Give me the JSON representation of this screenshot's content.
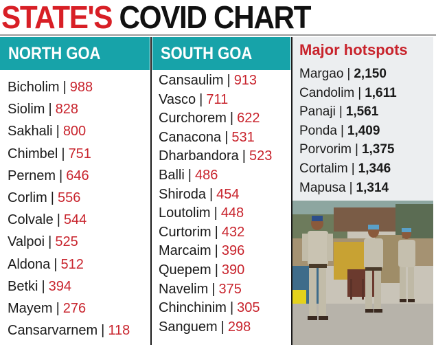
{
  "header": {
    "title_part1": "STATE'S",
    "title_part2": "COVID CHART"
  },
  "north": {
    "heading": "NORTH GOA",
    "items": [
      {
        "name": "Bicholim",
        "value": "988"
      },
      {
        "name": "Siolim",
        "value": "828"
      },
      {
        "name": "Sakhali",
        "value": "800"
      },
      {
        "name": "Chimbel",
        "value": "751"
      },
      {
        "name": "Pernem",
        "value": "646"
      },
      {
        "name": "Corlim",
        "value": "556"
      },
      {
        "name": "Colvale",
        "value": "544"
      },
      {
        "name": "Valpoi",
        "value": "525"
      },
      {
        "name": "Aldona",
        "value": "512"
      },
      {
        "name": "Betki",
        "value": "394"
      },
      {
        "name": "Mayem",
        "value": "276"
      },
      {
        "name": "Cansarvarnem",
        "value": "118"
      }
    ]
  },
  "south": {
    "heading": "SOUTH GOA",
    "items": [
      {
        "name": "Cansaulim",
        "value": "913"
      },
      {
        "name": "Vasco",
        "value": "711"
      },
      {
        "name": "Curchorem",
        "value": "622"
      },
      {
        "name": "Canacona",
        "value": "531"
      },
      {
        "name": "Dharbandora",
        "value": "523"
      },
      {
        "name": "Balli",
        "value": "486"
      },
      {
        "name": "Shiroda",
        "value": "454"
      },
      {
        "name": "Loutolim",
        "value": "448"
      },
      {
        "name": "Curtorim",
        "value": "432"
      },
      {
        "name": "Marcaim",
        "value": "396"
      },
      {
        "name": "Quepem",
        "value": "390"
      },
      {
        "name": "Navelim",
        "value": "375"
      },
      {
        "name": "Chinchinim",
        "value": "305"
      },
      {
        "name": "Sanguem",
        "value": "298"
      }
    ]
  },
  "hotspots": {
    "heading": "Major hotspots",
    "items": [
      {
        "name": "Margao",
        "value": "2,150"
      },
      {
        "name": "Candolim",
        "value": "1,611"
      },
      {
        "name": "Panaji",
        "value": "1,561"
      },
      {
        "name": "Ponda",
        "value": "1,409"
      },
      {
        "name": "Porvorim",
        "value": "1,375"
      },
      {
        "name": "Cortalim",
        "value": "1,346"
      },
      {
        "name": "Mapusa",
        "value": "1,314"
      }
    ]
  },
  "separator": "|",
  "colors": {
    "accent_red": "#c8232c",
    "header_teal": "#17a3a9",
    "title_red": "#d81f26"
  }
}
